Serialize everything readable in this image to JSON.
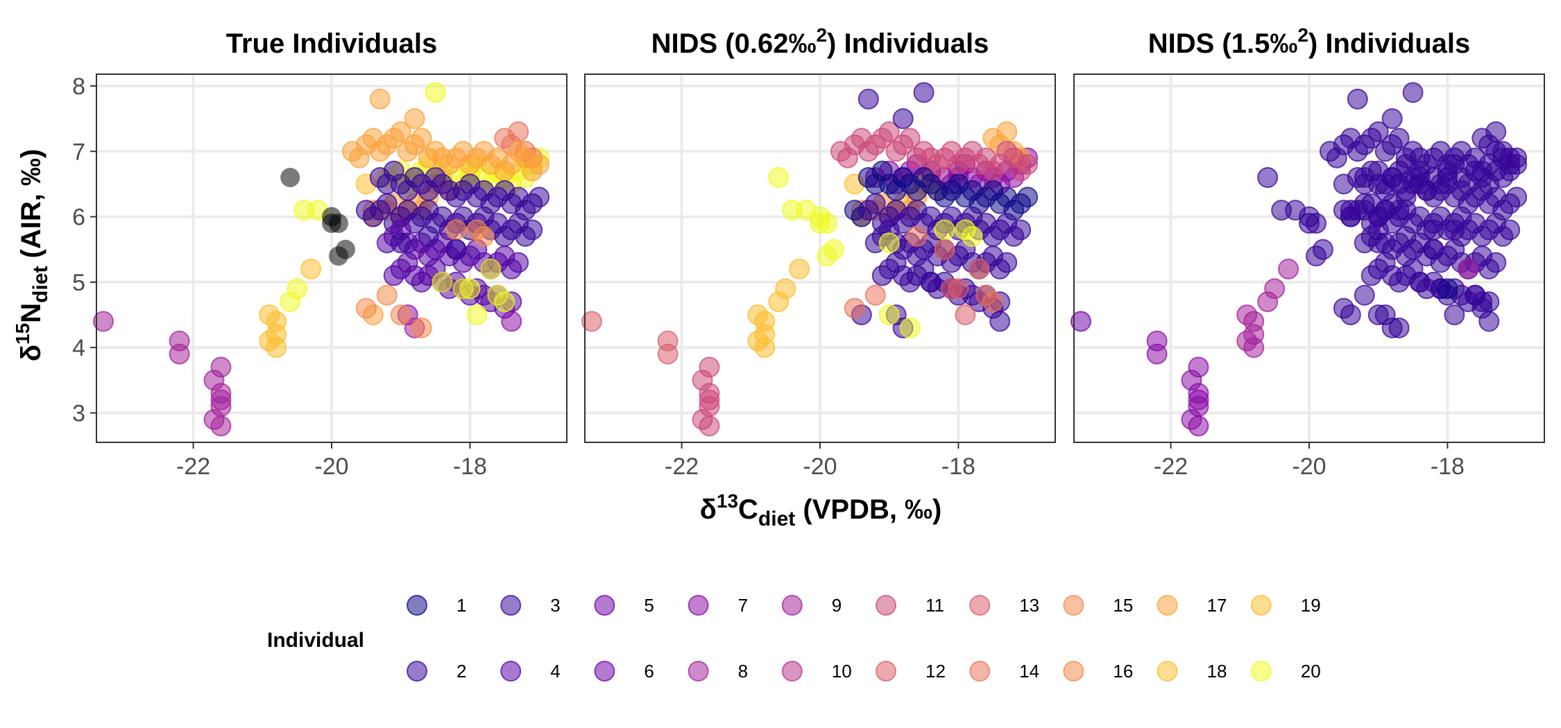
{
  "chart_data": {
    "type": "scatter",
    "panels": [
      {
        "title_prefix": "True Individuals",
        "title_sup": "",
        "title_suffix": ""
      },
      {
        "title_prefix": "NIDS (0.62‰",
        "title_sup": "2",
        "title_suffix": ") Individuals"
      },
      {
        "title_prefix": "NIDS (1.5‰",
        "title_sup": "2",
        "title_suffix": ") Individuals"
      }
    ],
    "xlabel": {
      "delta": "δ",
      "sup": "13",
      "main": "C",
      "sub": "diet",
      "rest": " (VPDB, ‰)"
    },
    "ylabel": {
      "delta": "δ",
      "sup": "15",
      "main": "N",
      "sub": "diet",
      "rest": " (AIR, ‰)"
    },
    "xlim": [
      -23.4,
      -16.6
    ],
    "ylim": [
      2.55,
      8.18
    ],
    "x_ticks": [
      -22,
      -20,
      -18
    ],
    "x_tick_labels": [
      "-22",
      "-20",
      "-18"
    ],
    "y_ticks": [
      3,
      4,
      5,
      6,
      7,
      8
    ],
    "y_tick_labels": [
      "3",
      "4",
      "5",
      "6",
      "7",
      "8"
    ],
    "grid": true,
    "legend": {
      "title": "Individual",
      "placement": "bottom",
      "labels": [
        "1",
        "2",
        "3",
        "4",
        "5",
        "6",
        "7",
        "8",
        "9",
        "10",
        "11",
        "12",
        "13",
        "14",
        "15",
        "16",
        "17",
        "18",
        "19",
        "20"
      ]
    },
    "colors": [
      "#0D0887",
      "#350498",
      "#5402A3",
      "#7001A8",
      "#8B0AA5",
      "#A31E9A",
      "#B83289",
      "#CC4778",
      "#DB5C68",
      "#E97158",
      "#F48849",
      "#FBA238",
      "#FEBC2A",
      "#F0F921"
    ],
    "points_x": [
      -23.3,
      -22.2,
      -22.2,
      -21.7,
      -21.6,
      -21.6,
      -21.6,
      -21.6,
      -21.6,
      -21.7,
      -20.9,
      -20.8,
      -20.8,
      -20.8,
      -20.9,
      -20.6,
      -20.5,
      -20.3,
      -20.4,
      -20.2,
      -20.0,
      -20.0,
      -19.9,
      -19.8,
      -19.9,
      -20.6,
      -19.5,
      -19.4,
      -19.4,
      -19.2,
      -19.1,
      -19.0,
      -18.9,
      -18.8,
      -18.7,
      -18.6,
      -18.5,
      -18.4,
      -18.3,
      -19.2,
      -19.0,
      -18.9,
      -18.8,
      -18.7,
      -18.6,
      -18.4,
      -18.2,
      -18.1,
      -18.0,
      -18.0,
      -17.9,
      -17.8,
      -17.7,
      -17.6,
      -17.5,
      -17.4,
      -17.3,
      -17.2,
      -17.1,
      -17.0,
      -17.5,
      -17.4,
      -17.3,
      -17.2,
      -17.1,
      -19.7,
      -19.6,
      -19.5,
      -19.4,
      -19.3,
      -19.2,
      -19.1,
      -19.0,
      -18.9,
      -18.8,
      -18.7,
      -18.6,
      -18.5,
      -18.4,
      -18.3,
      -18.2,
      -18.1,
      -18.0,
      -17.9,
      -17.8,
      -17.7,
      -17.6,
      -17.5,
      -17.4,
      -17.3,
      -17.2,
      -17.1,
      -17.0,
      -19.3,
      -19.2,
      -19.1,
      -19.0,
      -18.9,
      -18.8,
      -18.7,
      -18.6,
      -18.5,
      -18.4,
      -18.3,
      -18.2,
      -18.1,
      -18.0,
      -17.9,
      -17.8,
      -17.7,
      -17.6,
      -17.5,
      -17.4,
      -17.3,
      -17.2,
      -17.1,
      -17.0,
      -19.5,
      -19.4,
      -19.3,
      -19.2,
      -19.1,
      -19.0,
      -18.9,
      -18.8,
      -18.7,
      -18.6,
      -18.5,
      -18.4,
      -18.3,
      -18.2,
      -18.1,
      -18.0,
      -17.9,
      -17.8,
      -17.7,
      -17.6,
      -17.5,
      -17.4,
      -17.3,
      -17.2,
      -17.1,
      -19.2,
      -19.1,
      -19.0,
      -18.9,
      -18.8,
      -18.7,
      -18.6,
      -18.5,
      -18.4,
      -18.3,
      -18.2,
      -18.1,
      -18.0,
      -17.9,
      -17.8,
      -17.7,
      -17.6,
      -17.5,
      -17.4,
      -17.3,
      -19.1,
      -19.0,
      -18.9,
      -18.8,
      -18.7,
      -18.6,
      -18.5,
      -18.4,
      -18.3,
      -18.2,
      -18.1,
      -18.0,
      -17.9,
      -17.8,
      -17.7,
      -17.6,
      -17.5,
      -17.4,
      -18.9,
      -18.8,
      -17.4,
      -19.4,
      -19.3,
      -18.8,
      -18.5,
      -18.4,
      -18.1,
      -18.0,
      -17.9,
      -17.7,
      -17.6,
      -17.5,
      -19.5,
      -19.2,
      -19.0,
      -18.7,
      -18.2,
      -17.8,
      -17.9,
      -19.0,
      -18.6,
      -18.2
    ],
    "points_y": [
      4.4,
      4.1,
      3.9,
      3.5,
      3.7,
      3.3,
      3.1,
      3.2,
      2.8,
      2.9,
      4.1,
      4.0,
      4.2,
      4.4,
      4.5,
      4.7,
      4.9,
      5.2,
      6.1,
      6.1,
      6.0,
      5.9,
      5.9,
      5.5,
      5.4,
      6.6,
      6.5,
      6.1,
      6.0,
      6.1,
      6.2,
      6.0,
      6.1,
      6.2,
      6.1,
      6.3,
      6.5,
      6.6,
      6.4,
      6.6,
      6.7,
      6.5,
      6.6,
      6.7,
      6.8,
      6.7,
      6.6,
      6.5,
      6.7,
      6.6,
      6.8,
      6.6,
      6.5,
      6.7,
      6.6,
      6.5,
      6.7,
      6.6,
      6.8,
      6.9,
      7.2,
      7.1,
      7.3,
      7.0,
      6.9,
      7.0,
      6.9,
      7.1,
      7.2,
      7.0,
      7.1,
      7.2,
      7.3,
      7.0,
      7.1,
      7.2,
      6.9,
      7.0,
      6.9,
      6.8,
      6.9,
      7.0,
      6.8,
      6.9,
      7.0,
      6.8,
      6.9,
      6.7,
      6.8,
      7.0,
      6.9,
      6.7,
      6.8,
      6.6,
      6.5,
      6.7,
      6.5,
      6.4,
      6.6,
      6.5,
      6.4,
      6.6,
      6.5,
      6.4,
      6.3,
      6.4,
      6.5,
      6.3,
      6.4,
      6.2,
      6.3,
      6.4,
      6.2,
      6.3,
      6.1,
      6.2,
      6.3,
      6.1,
      6.0,
      6.1,
      6.2,
      5.9,
      6.0,
      6.1,
      5.9,
      6.0,
      6.1,
      5.9,
      6.0,
      5.8,
      5.9,
      6.0,
      5.8,
      5.9,
      6.0,
      5.8,
      5.9,
      5.7,
      5.8,
      5.9,
      5.7,
      5.8,
      5.6,
      5.7,
      5.8,
      5.6,
      5.5,
      5.6,
      5.4,
      5.5,
      5.6,
      5.4,
      5.5,
      5.3,
      5.4,
      5.5,
      5.3,
      5.2,
      5.3,
      5.4,
      5.2,
      5.3,
      5.1,
      5.2,
      5.3,
      5.1,
      5.0,
      5.1,
      5.2,
      5.0,
      4.9,
      5.0,
      4.9,
      4.8,
      4.9,
      4.8,
      4.7,
      4.8,
      4.6,
      4.7,
      4.5,
      4.3,
      4.4,
      4.5,
      7.8,
      7.5,
      7.9,
      5.0,
      4.9,
      4.9,
      4.5,
      5.2,
      4.8,
      4.7,
      4.6,
      4.8,
      4.5,
      4.3,
      5.8,
      5.7,
      5.8,
      5.6,
      5.7,
      5.5,
      5.1,
      6.1,
      6.0,
      5.9
    ],
    "panel_assign": [
      [
        5,
        5,
        5,
        5,
        5,
        5,
        5,
        5,
        5,
        5,
        12,
        12,
        12,
        12,
        12,
        13,
        13,
        12,
        13,
        13,
        14,
        14,
        14,
        14,
        14,
        14,
        12,
        11,
        11,
        11,
        11,
        11,
        11,
        11,
        11,
        11,
        11,
        11,
        11,
        13,
        13,
        13,
        13,
        13,
        13,
        13,
        13,
        13,
        13,
        13,
        13,
        13,
        13,
        13,
        13,
        13,
        13,
        13,
        13,
        13,
        9,
        9,
        9,
        9,
        9,
        11,
        11,
        11,
        11,
        11,
        11,
        11,
        11,
        11,
        11,
        11,
        11,
        11,
        11,
        11,
        11,
        11,
        11,
        11,
        11,
        11,
        11,
        11,
        11,
        11,
        11,
        11,
        11,
        1,
        1,
        1,
        1,
        1,
        1,
        1,
        1,
        1,
        1,
        1,
        1,
        1,
        1,
        1,
        1,
        1,
        1,
        1,
        1,
        1,
        1,
        1,
        1,
        1,
        1,
        1,
        1,
        1,
        1,
        1,
        1,
        1,
        1,
        1,
        1,
        1,
        1,
        1,
        1,
        1,
        1,
        1,
        1,
        1,
        1,
        1,
        1,
        1,
        2,
        2,
        2,
        2,
        2,
        2,
        2,
        2,
        2,
        2,
        2,
        2,
        2,
        2,
        2,
        2,
        2,
        2,
        2,
        2,
        2,
        2,
        2,
        2,
        2,
        2,
        2,
        2,
        2,
        2,
        2,
        2,
        2,
        2,
        2,
        2,
        2,
        2,
        4,
        5,
        4,
        11,
        11,
        11,
        13,
        13,
        13,
        13,
        13,
        13,
        13,
        13,
        10,
        10,
        10,
        10,
        10,
        10,
        10,
        1,
        1,
        1
      ],
      [
        8,
        8,
        8,
        7,
        7,
        7,
        7,
        7,
        7,
        7,
        12,
        12,
        12,
        12,
        12,
        12,
        12,
        12,
        13,
        13,
        13,
        13,
        13,
        13,
        13,
        13,
        12,
        11,
        11,
        11,
        11,
        11,
        11,
        11,
        11,
        11,
        11,
        11,
        11,
        4,
        4,
        4,
        4,
        4,
        4,
        4,
        4,
        4,
        4,
        4,
        4,
        4,
        4,
        4,
        4,
        4,
        4,
        4,
        4,
        4,
        11,
        11,
        11,
        11,
        11,
        7,
        7,
        7,
        7,
        7,
        7,
        7,
        7,
        7,
        7,
        7,
        7,
        7,
        7,
        7,
        7,
        7,
        7,
        7,
        7,
        7,
        7,
        7,
        7,
        7,
        7,
        7,
        7,
        0,
        0,
        0,
        0,
        0,
        0,
        0,
        0,
        0,
        0,
        0,
        0,
        0,
        0,
        0,
        0,
        0,
        0,
        0,
        0,
        0,
        0,
        0,
        0,
        0,
        0,
        1,
        1,
        1,
        1,
        1,
        1,
        1,
        1,
        1,
        1,
        1,
        1,
        1,
        1,
        1,
        1,
        1,
        1,
        1,
        1,
        1,
        1,
        1,
        1,
        1,
        1,
        1,
        1,
        1,
        1,
        1,
        1,
        1,
        1,
        1,
        1,
        1,
        1,
        1,
        1,
        1,
        1,
        1,
        1,
        1,
        1,
        1,
        1,
        1,
        1,
        1,
        1,
        1,
        1,
        1,
        1,
        1,
        1,
        1,
        1,
        1,
        1,
        1,
        1,
        1,
        1,
        1,
        1,
        1,
        8,
        8,
        8,
        9,
        9,
        9,
        9,
        9,
        13,
        13,
        13,
        13,
        13,
        13,
        9,
        9,
        9,
        9,
        9,
        9,
        9,
        0,
        0,
        0
      ],
      [
        3,
        4,
        4,
        4,
        4,
        4,
        4,
        4,
        4,
        4,
        5,
        5,
        5,
        5,
        5,
        5,
        5,
        5,
        1,
        1,
        1,
        1,
        1,
        1,
        1,
        1,
        1,
        1,
        1,
        1,
        1,
        1,
        1,
        1,
        1,
        1,
        1,
        1,
        1,
        1,
        1,
        1,
        1,
        1,
        1,
        1,
        1,
        1,
        1,
        1,
        1,
        1,
        1,
        1,
        1,
        1,
        1,
        1,
        1,
        1,
        1,
        1,
        1,
        1,
        1,
        1,
        1,
        1,
        1,
        1,
        1,
        1,
        1,
        1,
        1,
        1,
        1,
        1,
        1,
        1,
        1,
        1,
        1,
        1,
        1,
        1,
        1,
        1,
        1,
        1,
        1,
        1,
        1,
        1,
        1,
        1,
        1,
        1,
        1,
        1,
        1,
        1,
        1,
        1,
        1,
        1,
        1,
        1,
        1,
        1,
        1,
        1,
        1,
        1,
        1,
        1,
        1,
        1,
        1,
        1,
        1,
        1,
        1,
        1,
        1,
        1,
        1,
        1,
        1,
        1,
        1,
        1,
        1,
        1,
        1,
        1,
        1,
        1,
        1,
        1,
        1,
        1,
        1,
        1,
        1,
        1,
        1,
        1,
        1,
        1,
        1,
        1,
        1,
        1,
        1,
        1,
        1,
        1,
        1,
        1,
        1,
        1,
        1,
        1,
        1,
        1,
        1,
        1,
        1,
        1,
        1,
        1,
        1,
        1,
        1,
        1,
        1,
        1,
        1,
        1,
        1,
        1,
        1,
        1,
        1,
        1,
        1,
        1,
        1,
        0,
        1,
        5,
        1,
        1,
        1,
        1,
        1,
        1,
        1,
        1,
        1,
        1,
        1,
        1,
        1,
        1,
        1,
        1,
        1,
        1,
        1,
        0,
        0,
        0
      ]
    ]
  }
}
